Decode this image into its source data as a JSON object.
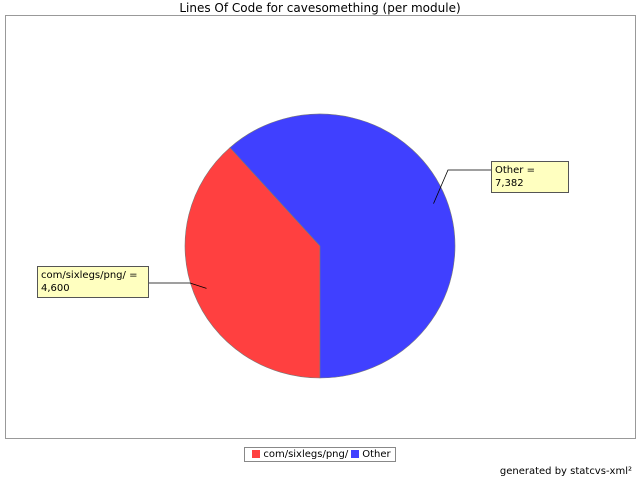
{
  "chart_data": {
    "type": "pie",
    "title": "Lines Of Code for cavesomething (per module)",
    "categories": [
      "com/sixlegs/png/",
      "Other"
    ],
    "values": [
      4600,
      7382
    ],
    "value_labels": [
      "com/sixlegs/png/ = 4,600",
      "Other = 7,382"
    ],
    "colors": [
      "#ff4040",
      "#4040ff"
    ],
    "footer": "generated by statcvs-xml²"
  }
}
